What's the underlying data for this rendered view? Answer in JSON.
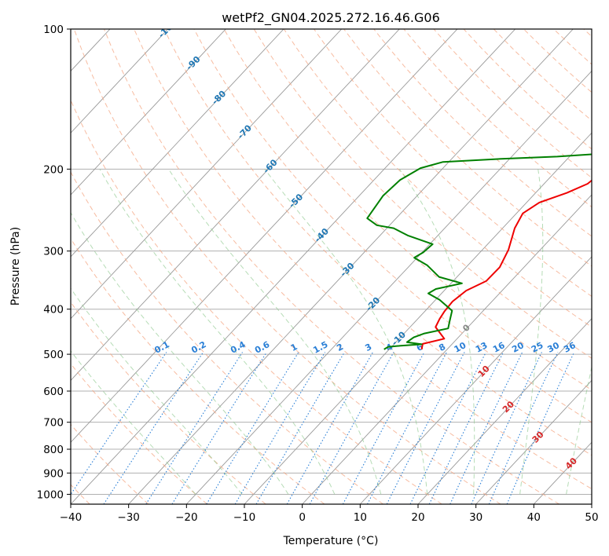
{
  "chart_data": {
    "type": "skewt",
    "title": "wetPf2_GN04.2025.272.16.46.G06",
    "xlabel": "Temperature (°C)",
    "ylabel": "Pressure (hPa)",
    "xlim": [
      -40,
      50
    ],
    "ylim": [
      1050,
      100
    ],
    "x_ticks": [
      -40,
      -30,
      -20,
      -10,
      0,
      10,
      20,
      30,
      40,
      50
    ],
    "y_ticks": [
      100,
      200,
      300,
      400,
      500,
      600,
      700,
      800,
      900,
      1000
    ],
    "isotherm_labels": [
      {
        "value": -100,
        "text": "-100"
      },
      {
        "value": -90,
        "text": "-90"
      },
      {
        "value": -80,
        "text": "-80"
      },
      {
        "value": -70,
        "text": "-70"
      },
      {
        "value": -60,
        "text": "-60"
      },
      {
        "value": -50,
        "text": "-50"
      },
      {
        "value": -40,
        "text": "-40"
      },
      {
        "value": -30,
        "text": "-30"
      },
      {
        "value": -20,
        "text": "-20"
      },
      {
        "value": -10,
        "text": "-10"
      },
      {
        "value": 0,
        "text": "0"
      },
      {
        "value": 10,
        "text": "10"
      },
      {
        "value": 20,
        "text": "20"
      },
      {
        "value": 30,
        "text": "30"
      },
      {
        "value": 40,
        "text": "40"
      }
    ],
    "mixing_ratio_labels": [
      "0.1",
      "0.2",
      "0.4",
      "0.6",
      "1",
      "1.5",
      "2",
      "3",
      "4",
      "6",
      "8",
      "10",
      "13",
      "16",
      "20",
      "25",
      "30",
      "36"
    ],
    "series": [
      {
        "name": "Temperature",
        "color": "#ee0000",
        "points": [
          [
            -4.4,
            488
          ],
          [
            -5.1,
            475
          ],
          [
            -2.2,
            463
          ],
          [
            -5.6,
            437
          ],
          [
            -6.2,
            420
          ],
          [
            -6.6,
            404
          ],
          [
            -6.8,
            385
          ],
          [
            -6.2,
            365
          ],
          [
            -4.3,
            348
          ],
          [
            -4.2,
            325
          ],
          [
            -5.5,
            298
          ],
          [
            -7.9,
            268
          ],
          [
            -8.9,
            249
          ],
          [
            -7.8,
            236
          ],
          [
            -4.6,
            225
          ],
          [
            -2.5,
            215
          ],
          [
            -1.8,
            201
          ],
          [
            -1.5,
            192
          ],
          [
            -1.7,
            183
          ],
          [
            -1.5,
            177
          ],
          [
            -0.7,
            172
          ],
          [
            1.3,
            165
          ],
          [
            4.0,
            157
          ],
          [
            6.3,
            150
          ],
          [
            8.6,
            143
          ],
          [
            9.7,
            140
          ],
          [
            12.5,
            133
          ],
          [
            14.5,
            129
          ],
          [
            17.7,
            123
          ],
          [
            20.6,
            120
          ],
          [
            23.5,
            117
          ],
          [
            26.0,
            115
          ],
          [
            28.4,
            113
          ],
          [
            31.1,
            111
          ],
          [
            31.8,
            109
          ],
          [
            31.2,
            106.5
          ],
          [
            29.2,
            104
          ],
          [
            29.9,
            100
          ]
        ]
      },
      {
        "name": "Dewpoint",
        "color": "#008000",
        "points": [
          [
            -10.9,
            488
          ],
          [
            -10.6,
            482
          ],
          [
            -9.2,
            480
          ],
          [
            -5.2,
            476
          ],
          [
            -8.1,
            471
          ],
          [
            -7.7,
            460
          ],
          [
            -6.5,
            451
          ],
          [
            -3.2,
            440
          ],
          [
            -4.2,
            423
          ],
          [
            -5.4,
            403
          ],
          [
            -9.3,
            382
          ],
          [
            -12.3,
            370
          ],
          [
            -11.7,
            362
          ],
          [
            -8.1,
            352
          ],
          [
            -13.1,
            341
          ],
          [
            -17.0,
            322
          ],
          [
            -20.5,
            310
          ],
          [
            -19.8,
            302
          ],
          [
            -19.5,
            290
          ],
          [
            -25.1,
            278
          ],
          [
            -28.8,
            268
          ],
          [
            -32.2,
            264
          ],
          [
            -35.0,
            255
          ],
          [
            -35.9,
            228
          ],
          [
            -35.5,
            211
          ],
          [
            -33.9,
            199
          ],
          [
            -31.0,
            193
          ],
          [
            -21.0,
            190
          ],
          [
            -12.1,
            188
          ],
          [
            -4.3,
            185
          ],
          [
            1.2,
            180
          ],
          [
            4.4,
            172
          ],
          [
            6.3,
            162
          ],
          [
            8.3,
            155
          ],
          [
            12.0,
            143
          ],
          [
            15.8,
            136
          ],
          [
            21.0,
            129
          ],
          [
            22.6,
            121
          ],
          [
            24.7,
            115
          ],
          [
            27.0,
            109
          ],
          [
            29.3,
            104
          ],
          [
            30.5,
            100
          ]
        ]
      }
    ]
  }
}
